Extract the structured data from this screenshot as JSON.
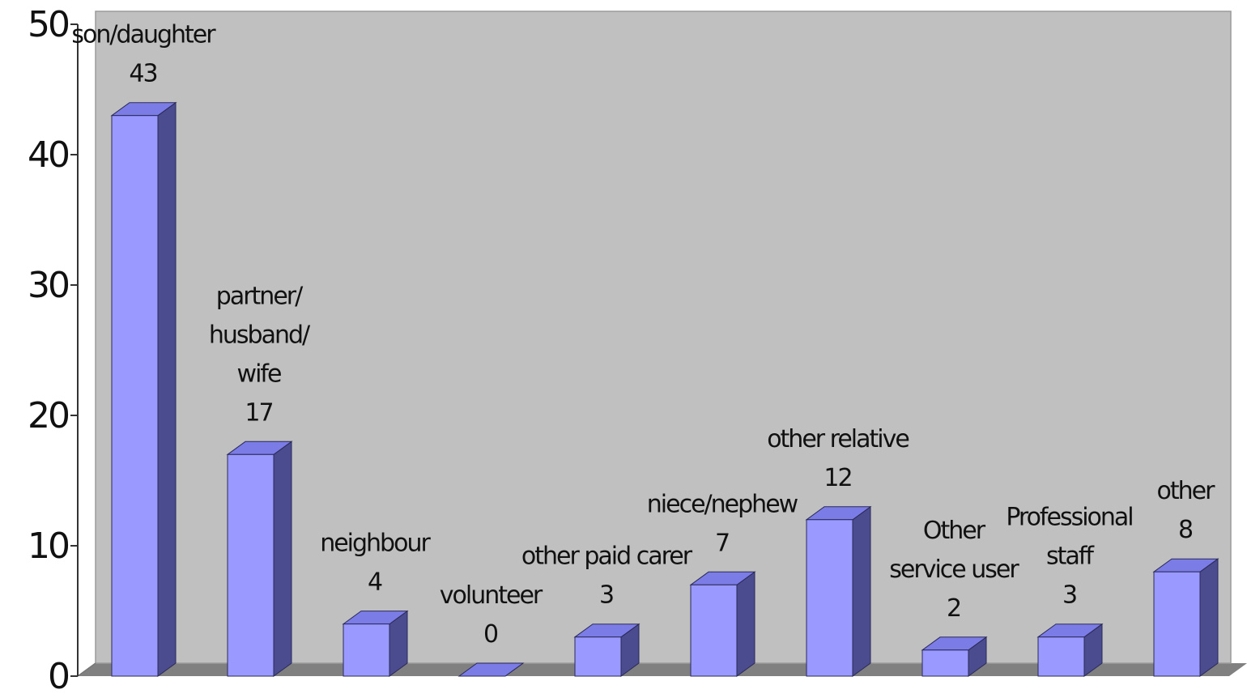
{
  "chart_data": {
    "type": "bar",
    "style": "3d-column",
    "categories": [
      [
        "son/daughter"
      ],
      [
        "partner/",
        "husband/",
        "wife"
      ],
      [
        "neighbour"
      ],
      [
        "volunteer"
      ],
      [
        "other paid carer"
      ],
      [
        "niece/nephew"
      ],
      [
        "other relative"
      ],
      [
        "Other",
        "service user"
      ],
      [
        "Professional",
        "staff"
      ],
      [
        "other"
      ]
    ],
    "values": [
      43,
      17,
      4,
      0,
      3,
      7,
      12,
      2,
      3,
      8
    ],
    "ylim": [
      0,
      50
    ],
    "yticks": [
      0,
      10,
      20,
      30,
      40,
      50
    ],
    "title": "",
    "xlabel": "",
    "ylabel": "",
    "grid": false,
    "legend": "none",
    "colors": {
      "bar_front": "#9999FF",
      "bar_side": "#4B4B8F",
      "bar_top": "#7C7CE6",
      "plot_back": "#C0C0C0",
      "plot_floor": "#808080"
    }
  }
}
